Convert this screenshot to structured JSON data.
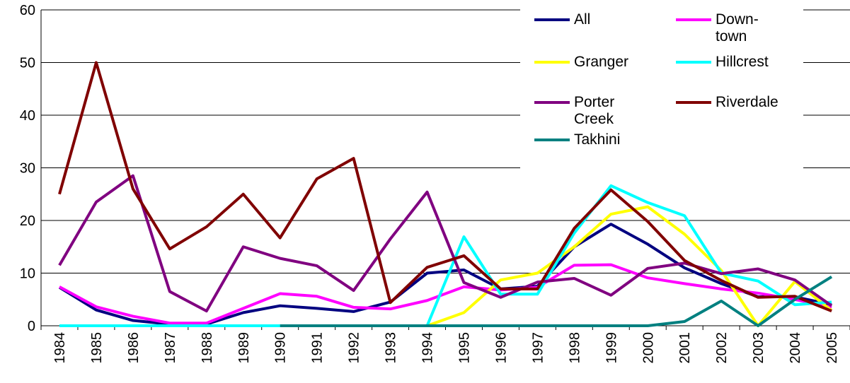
{
  "chart_data": {
    "type": "line",
    "categories": [
      "1984",
      "1985",
      "1986",
      "1987",
      "1988",
      "1989",
      "1990",
      "1991",
      "1992",
      "1993",
      "1994",
      "1995",
      "1996",
      "1997",
      "1998",
      "1999",
      "2000",
      "2001",
      "2002",
      "2003",
      "2004",
      "2005"
    ],
    "ylim": [
      0,
      60
    ],
    "yticks": [
      0,
      10,
      20,
      30,
      40,
      50,
      60
    ],
    "grid": true,
    "series": [
      {
        "name": "All",
        "color": "#000080",
        "values": [
          7.3,
          3,
          1,
          0.3,
          0.3,
          2.5,
          3.8,
          3.3,
          2.7,
          4.5,
          10,
          10.6,
          7,
          7.5,
          15,
          19.3,
          15.5,
          11,
          8,
          5.5,
          5.5,
          4
        ]
      },
      {
        "name": "Down-town",
        "color": "#ff00ff",
        "values": [
          7.4,
          3.6,
          1.8,
          0.5,
          0.5,
          3.3,
          6.1,
          5.6,
          3.5,
          3.2,
          4.8,
          7.4,
          6.8,
          7.3,
          11.5,
          11.6,
          9.1,
          8,
          7,
          6.2,
          5,
          3.5
        ]
      },
      {
        "name": "Granger",
        "color": "#ffff00",
        "values": [
          null,
          null,
          null,
          null,
          null,
          null,
          null,
          null,
          null,
          null,
          0,
          2.5,
          8.7,
          10,
          15,
          21.2,
          22.6,
          17.4,
          10.5,
          0,
          8.4,
          2.9
        ]
      },
      {
        "name": "Hillcrest",
        "color": "#00ffff",
        "values": [
          0,
          0,
          0,
          0,
          0,
          0,
          0,
          0,
          0,
          0,
          0,
          16.9,
          6,
          6,
          17.6,
          26.6,
          23.4,
          20.9,
          10,
          8.5,
          4,
          4.5
        ]
      },
      {
        "name": "Porter Creek",
        "color": "#800080",
        "values": [
          11.5,
          23.5,
          28.5,
          6.5,
          2.8,
          15,
          12.8,
          11.4,
          6.7,
          16.5,
          25.4,
          8.2,
          5.4,
          8.3,
          9,
          5.8,
          10.9,
          11.9,
          9.9,
          10.8,
          8.7,
          3.8
        ]
      },
      {
        "name": "Riverdale",
        "color": "#800000",
        "values": [
          25,
          50,
          26,
          14.6,
          18.8,
          25,
          16.7,
          27.9,
          31.8,
          4.4,
          11.1,
          13.3,
          7,
          7,
          18.5,
          25.8,
          19.8,
          12.4,
          8.6,
          5.4,
          5.6,
          2.8
        ]
      },
      {
        "name": "Takhini",
        "color": "#008080",
        "values": [
          null,
          null,
          null,
          null,
          null,
          null,
          0,
          0,
          0,
          0,
          0,
          0,
          0,
          0,
          0,
          0,
          0,
          0.8,
          4.7,
          0,
          5,
          9.3
        ]
      }
    ]
  }
}
